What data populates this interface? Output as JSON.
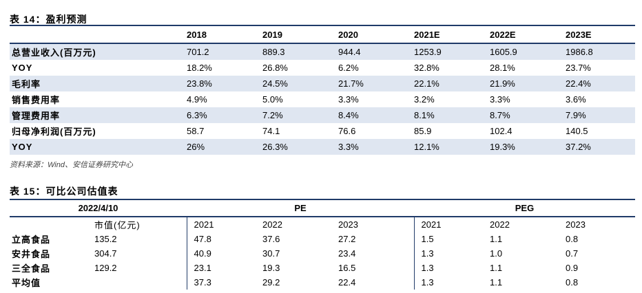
{
  "table1": {
    "title": "表 14：盈利预测",
    "headers": [
      "",
      "2018",
      "2019",
      "2020",
      "2021E",
      "2022E",
      "2023E"
    ],
    "rows": [
      {
        "label": "总营业收入(百万元)",
        "values": [
          "701.2",
          "889.3",
          "944.4",
          "1253.9",
          "1605.9",
          "1986.8"
        ]
      },
      {
        "label": "YOY",
        "values": [
          "18.2%",
          "26.8%",
          "6.2%",
          "32.8%",
          "28.1%",
          "23.7%"
        ]
      },
      {
        "label": "毛利率",
        "values": [
          "23.8%",
          "24.5%",
          "21.7%",
          "22.1%",
          "21.9%",
          "22.4%"
        ]
      },
      {
        "label": "销售费用率",
        "values": [
          "4.9%",
          "5.0%",
          "3.3%",
          "3.2%",
          "3.3%",
          "3.6%"
        ]
      },
      {
        "label": "管理费用率",
        "values": [
          "6.3%",
          "7.2%",
          "8.4%",
          "8.1%",
          "8.7%",
          "7.9%"
        ]
      },
      {
        "label": "归母净利润(百万元)",
        "values": [
          "58.7",
          "74.1",
          "76.6",
          "85.9",
          "102.4",
          "140.5"
        ]
      },
      {
        "label": "YOY",
        "values": [
          "26%",
          "26.3%",
          "3.3%",
          "12.1%",
          "19.3%",
          "37.2%"
        ]
      }
    ],
    "source": "资料来源：Wind、安信证券研究中心"
  },
  "table2": {
    "title": "表 15：可比公司估值表",
    "date": "2022/4/10",
    "group_pe": "PE",
    "group_peg": "PEG",
    "sub_market_cap": "市值(亿元)",
    "years": [
      "2021",
      "2022",
      "2023"
    ],
    "rows": [
      {
        "label": "立高食品",
        "cap": "135.2",
        "pe": [
          "47.8",
          "37.6",
          "27.2"
        ],
        "peg": [
          "1.5",
          "1.1",
          "0.8"
        ]
      },
      {
        "label": "安井食品",
        "cap": "304.7",
        "pe": [
          "40.9",
          "30.7",
          "23.4"
        ],
        "peg": [
          "1.3",
          "1.0",
          "0.7"
        ]
      },
      {
        "label": "三全食品",
        "cap": "129.2",
        "pe": [
          "23.1",
          "19.3",
          "16.5"
        ],
        "peg": [
          "1.3",
          "1.1",
          "0.9"
        ]
      },
      {
        "label": "平均值",
        "cap": "",
        "pe": [
          "37.3",
          "29.2",
          "22.4"
        ],
        "peg": [
          "1.3",
          "1.1",
          "0.8"
        ]
      }
    ]
  }
}
